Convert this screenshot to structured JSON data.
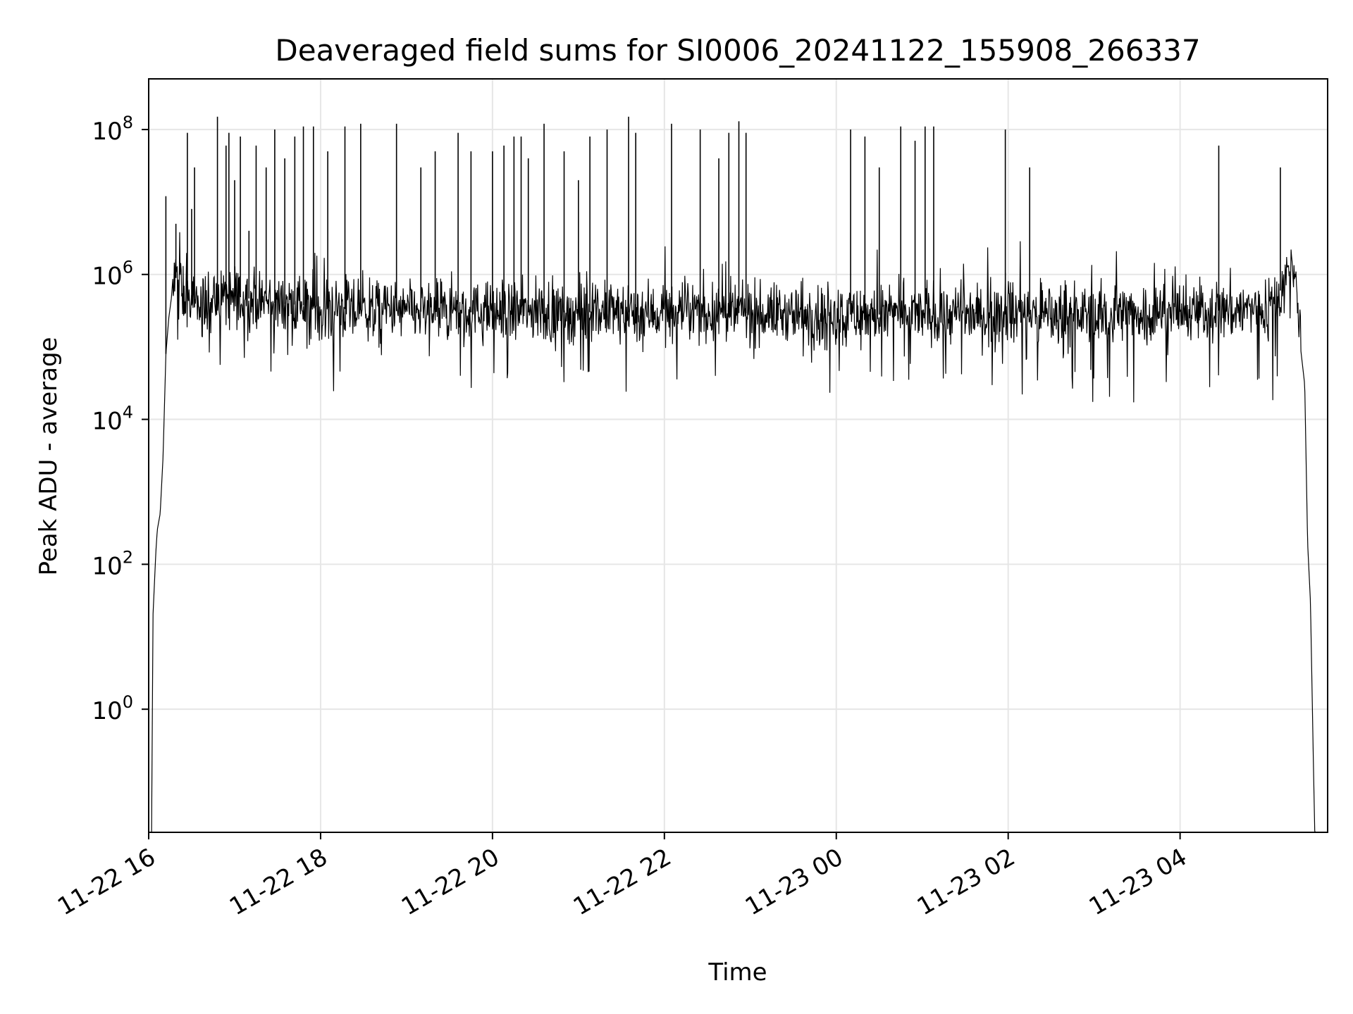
{
  "chart_data": {
    "type": "line",
    "title": "Deaveraged field sums for SI0006_20241122_155908_266337",
    "xlabel": "Time",
    "ylabel": "Peak ADU - average",
    "yscale": "log",
    "grid": true,
    "line_color": "#000000",
    "grid_color": "#e6e6e6",
    "xlim": [
      "2024-11-22 16:00",
      "2024-11-23 05:43"
    ],
    "ylim": [
      0.02,
      500000000
    ],
    "x_ticks": [
      "2024-11-22 16:00",
      "2024-11-22 18:00",
      "2024-11-22 20:00",
      "2024-11-22 22:00",
      "2024-11-23 00:00",
      "2024-11-23 02:00",
      "2024-11-23 04:00"
    ],
    "x_tick_labels": [
      "11-22 16",
      "11-22 18",
      "11-22 20",
      "11-22 22",
      "11-23 00",
      "11-23 02",
      "11-23 04"
    ],
    "y_ticks": [
      1,
      100,
      10000,
      1000000,
      100000000
    ],
    "y_tick_labels": [
      {
        "base": "10",
        "exp": "0"
      },
      {
        "base": "10",
        "exp": "2"
      },
      {
        "base": "10",
        "exp": "4"
      },
      {
        "base": "10",
        "exp": "6"
      },
      {
        "base": "10",
        "exp": "8"
      }
    ],
    "series": [
      {
        "x": [
          "2024-11-22 16:02",
          "2024-11-22 16:03",
          "2024-11-22 16:05",
          "2024-11-22 16:06",
          "2024-11-22 16:08",
          "2024-11-22 16:10",
          "2024-11-22 16:12",
          "2024-11-22 16:14",
          "2024-11-22 16:16",
          "2024-11-22 16:18",
          "2024-11-22 16:20",
          "2024-11-22 16:22",
          "2024-11-22 16:25",
          "2024-11-22 16:28",
          "2024-11-22 16:32",
          "2024-11-22 16:40",
          "2024-11-22 16:50",
          "2024-11-22 17:00",
          "2024-11-22 17:15",
          "2024-11-22 17:30",
          "2024-11-22 17:45",
          "2024-11-22 18:00",
          "2024-11-22 18:30",
          "2024-11-22 19:00",
          "2024-11-22 19:30",
          "2024-11-22 20:00",
          "2024-11-22 20:30",
          "2024-11-22 21:00",
          "2024-11-22 21:30",
          "2024-11-22 22:00",
          "2024-11-22 22:30",
          "2024-11-22 23:00",
          "2024-11-22 23:30",
          "2024-11-23 00:00",
          "2024-11-23 00:30",
          "2024-11-23 01:00",
          "2024-11-23 01:30",
          "2024-11-23 02:00",
          "2024-11-23 02:30",
          "2024-11-23 03:00",
          "2024-11-23 03:30",
          "2024-11-23 04:00",
          "2024-11-23 04:30",
          "2024-11-23 05:00",
          "2024-11-23 05:10",
          "2024-11-23 05:15",
          "2024-11-23 05:18",
          "2024-11-23 05:21",
          "2024-11-23 05:24",
          "2024-11-23 05:27",
          "2024-11-23 05:29",
          "2024-11-23 05:31",
          "2024-11-23 05:33",
          "2024-11-23 05:34",
          "2024-11-23 05:35",
          "2024-11-23 05:36"
        ],
        "y": [
          0.02,
          20,
          150,
          300,
          500,
          3000,
          80000,
          250000,
          500000,
          800000,
          1000000,
          700000,
          500000,
          400000,
          350000,
          400000,
          450000,
          500000,
          450000,
          400000,
          380000,
          350000,
          320000,
          310000,
          300000,
          300000,
          300000,
          300000,
          300000,
          300000,
          300000,
          290000,
          290000,
          280000,
          280000,
          280000,
          280000,
          280000,
          280000,
          280000,
          290000,
          300000,
          320000,
          350000,
          600000,
          1000000,
          1200000,
          800000,
          100000,
          30000,
          200,
          30,
          0.2,
          0.02,
          0.02,
          0.02
        ]
      }
    ],
    "spikes": [
      {
        "x": "2024-11-22 16:12",
        "y": 12000000
      },
      {
        "x": "2024-11-22 16:19",
        "y": 5000000
      },
      {
        "x": "2024-11-22 16:27",
        "y": 90000000
      },
      {
        "x": "2024-11-22 16:30",
        "y": 8000000
      },
      {
        "x": "2024-11-22 16:32",
        "y": 30000000
      },
      {
        "x": "2024-11-22 16:48",
        "y": 150000000
      },
      {
        "x": "2024-11-22 16:54",
        "y": 60000000
      },
      {
        "x": "2024-11-22 16:56",
        "y": 90000000
      },
      {
        "x": "2024-11-22 17:00",
        "y": 20000000
      },
      {
        "x": "2024-11-22 17:04",
        "y": 80000000
      },
      {
        "x": "2024-11-22 17:10",
        "y": 4000000
      },
      {
        "x": "2024-11-22 17:15",
        "y": 60000000
      },
      {
        "x": "2024-11-22 17:22",
        "y": 30000000
      },
      {
        "x": "2024-11-22 17:28",
        "y": 100000000
      },
      {
        "x": "2024-11-22 17:35",
        "y": 40000000
      },
      {
        "x": "2024-11-22 17:42",
        "y": 80000000
      },
      {
        "x": "2024-11-22 17:48",
        "y": 110000000
      },
      {
        "x": "2024-11-22 17:55",
        "y": 110000000
      },
      {
        "x": "2024-11-22 18:05",
        "y": 50000000
      },
      {
        "x": "2024-11-22 18:17",
        "y": 110000000
      },
      {
        "x": "2024-11-22 18:28",
        "y": 120000000
      },
      {
        "x": "2024-11-22 18:53",
        "y": 120000000
      },
      {
        "x": "2024-11-22 19:10",
        "y": 30000000
      },
      {
        "x": "2024-11-22 19:20",
        "y": 50000000
      },
      {
        "x": "2024-11-22 19:36",
        "y": 90000000
      },
      {
        "x": "2024-11-22 19:45",
        "y": 50000000
      },
      {
        "x": "2024-11-22 20:00",
        "y": 50000000
      },
      {
        "x": "2024-11-22 20:08",
        "y": 60000000
      },
      {
        "x": "2024-11-22 20:15",
        "y": 80000000
      },
      {
        "x": "2024-11-22 20:20",
        "y": 80000000
      },
      {
        "x": "2024-11-22 20:25",
        "y": 40000000
      },
      {
        "x": "2024-11-22 20:36",
        "y": 120000000
      },
      {
        "x": "2024-11-22 20:50",
        "y": 50000000
      },
      {
        "x": "2024-11-22 21:00",
        "y": 20000000
      },
      {
        "x": "2024-11-22 21:08",
        "y": 80000000
      },
      {
        "x": "2024-11-22 21:20",
        "y": 100000000
      },
      {
        "x": "2024-11-22 21:35",
        "y": 150000000
      },
      {
        "x": "2024-11-22 21:40",
        "y": 90000000
      },
      {
        "x": "2024-11-22 22:05",
        "y": 120000000
      },
      {
        "x": "2024-11-22 22:25",
        "y": 100000000
      },
      {
        "x": "2024-11-22 22:38",
        "y": 40000000
      },
      {
        "x": "2024-11-22 22:45",
        "y": 90000000
      },
      {
        "x": "2024-11-22 22:52",
        "y": 130000000
      },
      {
        "x": "2024-11-22 22:57",
        "y": 90000000
      },
      {
        "x": "2024-11-23 00:10",
        "y": 100000000
      },
      {
        "x": "2024-11-23 00:20",
        "y": 80000000
      },
      {
        "x": "2024-11-23 00:30",
        "y": 30000000
      },
      {
        "x": "2024-11-23 00:45",
        "y": 110000000
      },
      {
        "x": "2024-11-23 00:55",
        "y": 70000000
      },
      {
        "x": "2024-11-23 01:02",
        "y": 110000000
      },
      {
        "x": "2024-11-23 01:08",
        "y": 110000000
      },
      {
        "x": "2024-11-23 01:58",
        "y": 100000000
      },
      {
        "x": "2024-11-23 02:15",
        "y": 30000000
      },
      {
        "x": "2024-11-23 04:27",
        "y": 60000000
      },
      {
        "x": "2024-11-23 05:10",
        "y": 30000000
      }
    ]
  }
}
